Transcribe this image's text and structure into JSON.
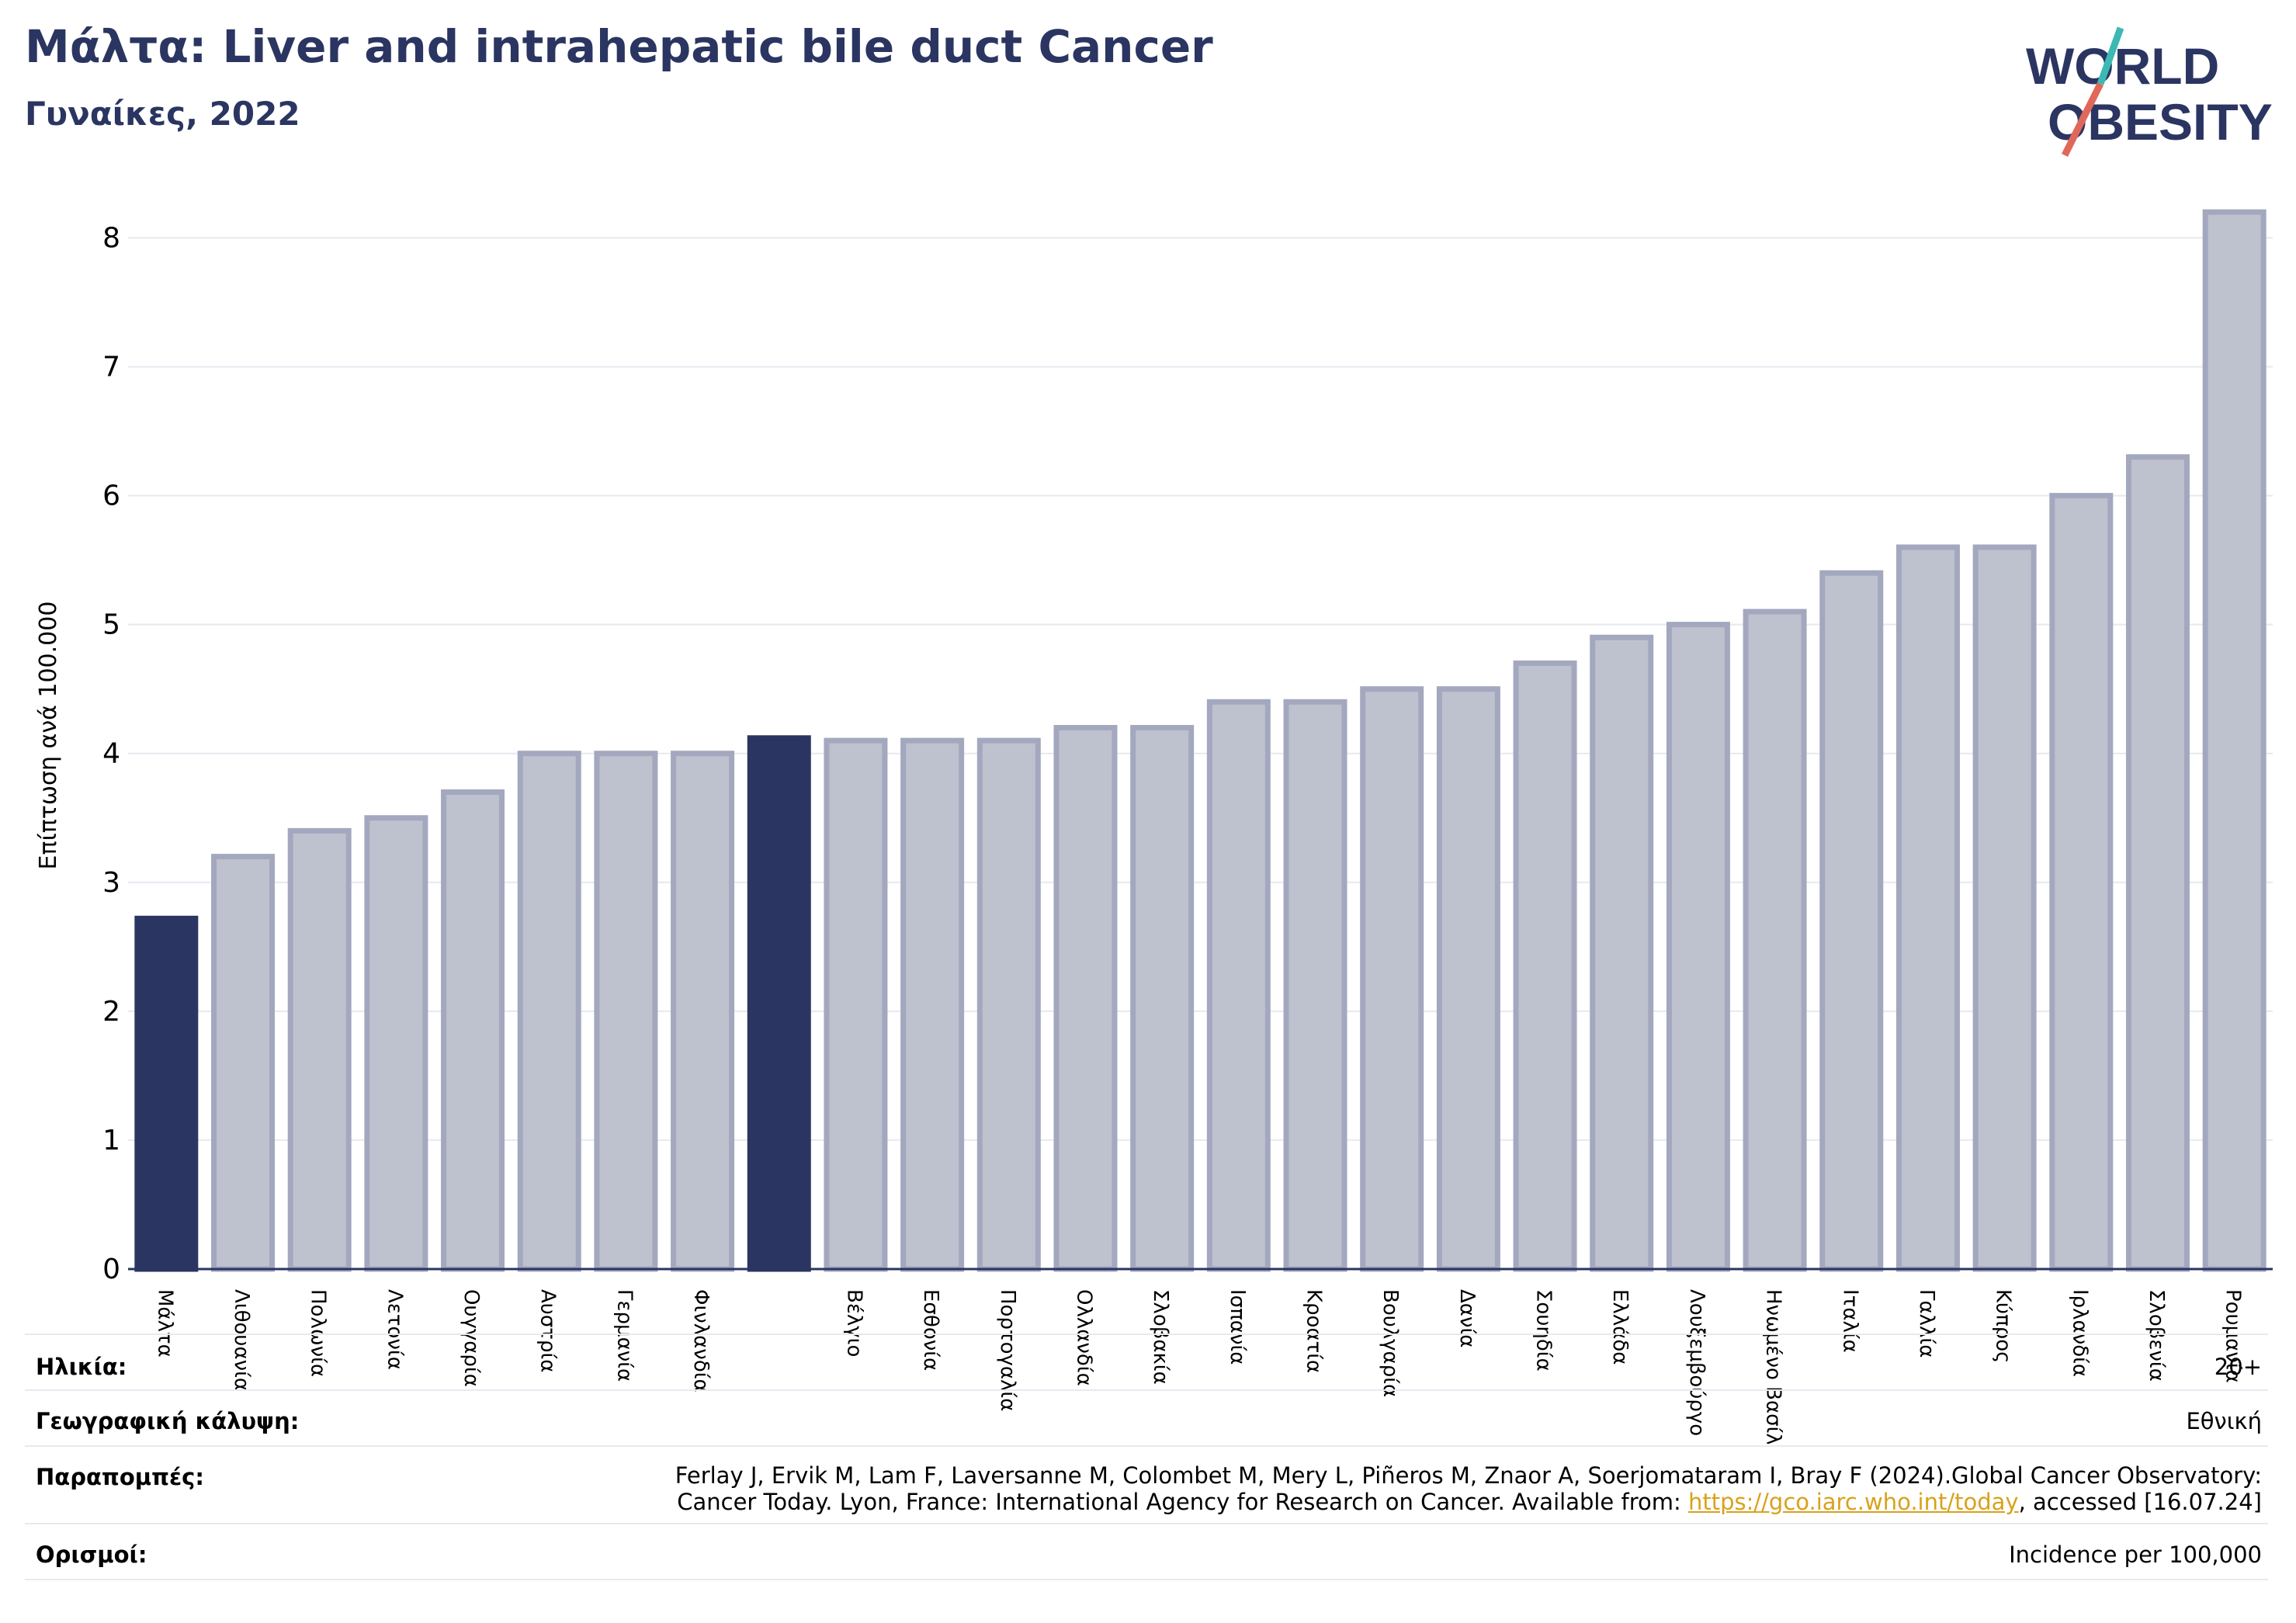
{
  "header": {
    "title": "Μάλτα: Liver and intrahepatic bile duct Cancer",
    "subtitle": "Γυναίκες, 2022"
  },
  "logo": {
    "line1": "WORLD",
    "line2": "OBESITY"
  },
  "chart_data": {
    "type": "bar",
    "ylabel": "Επίπτωση ανά 100.000",
    "xlabel": "",
    "ylim": [
      0,
      8.4
    ],
    "yticks": [
      0,
      1,
      2,
      3,
      4,
      5,
      6,
      7,
      8
    ],
    "grid": true,
    "categories": [
      "Μάλτα",
      "Λιθουανία",
      "Πολωνία",
      "Λετονία",
      "Ουγγαρία",
      "Αυστρία",
      "Γερμανία",
      "Φινλανδία",
      "",
      "Βέλγιο",
      "Εσθονία",
      "Πορτογαλία",
      "Ολλανδία",
      "Σλοβακία",
      "Ισπανία",
      "Κροατία",
      "Βουλγαρία",
      "Δανία",
      "Σουηδία",
      "Ελλάδα",
      "Λουξεμβούργο",
      "Ηνωμένο Βασίλειο",
      "Ιταλία",
      "Γαλλία",
      "Κύπρος",
      "Ιρλανδία",
      "Σλοβενία",
      "Ρουμανία"
    ],
    "values": [
      2.72,
      3.2,
      3.4,
      3.5,
      3.7,
      4.0,
      4.0,
      4.0,
      4.12,
      4.1,
      4.1,
      4.1,
      4.2,
      4.2,
      4.4,
      4.4,
      4.5,
      4.5,
      4.7,
      4.9,
      5.0,
      5.1,
      5.4,
      5.6,
      5.6,
      6.0,
      6.3,
      8.2
    ],
    "highlight": [
      0,
      8
    ],
    "colors": {
      "highlight": "#2b3561",
      "bar_fill": "#bec1ce",
      "bar_stroke": "#a3a8bf",
      "grid": "#e6e9ef",
      "axis": "#2b3561"
    }
  },
  "info": {
    "age_label": "Ηλικία:",
    "age_value": "20+",
    "coverage_label": "Γεωγραφική κάλυψη:",
    "coverage_value": "Εθνική",
    "refs_label": "Παραπομπές:",
    "refs_line1": "Ferlay J, Ervik M, Lam F, Laversanne M, Colombet M, Mery L, Piñeros M, Znaor A, Soerjomataram I, Bray F (2024).Global Cancer Observatory:",
    "refs_line2_pre": "Cancer Today. Lyon, France: International Agency for Research on Cancer. Available from: ",
    "refs_link": "https://gco.iarc.who.int/today",
    "refs_line2_post": ", accessed [16.07.24]",
    "defs_label": "Ορισμοί:",
    "defs_value": "Incidence per 100,000"
  }
}
